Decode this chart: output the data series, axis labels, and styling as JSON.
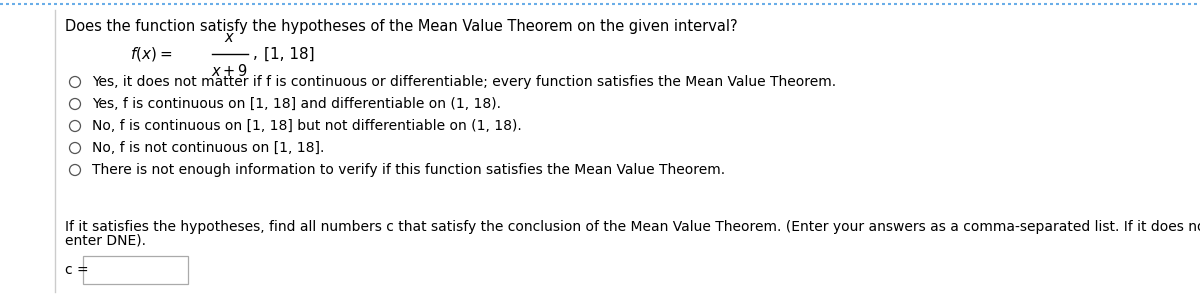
{
  "title": "Does the function satisfy the hypotheses of the Mean Value Theorem on the given interval?",
  "numerator": "x",
  "denominator": "x + 9",
  "interval": "[1, 18]",
  "options": [
    "Yes, it does not matter if f is continuous or differentiable; every function satisfies the Mean Value Theorem.",
    "Yes, f is continuous on [1, 18] and differentiable on (1, 18).",
    "No, f is continuous on [1, 18] but not differentiable on (1, 18).",
    "No, f is not continuous on [1, 18].",
    "There is not enough information to verify if this function satisfies the Mean Value Theorem."
  ],
  "footer_line1": "If it satisfies the hypotheses, find all numbers c that satisfy the conclusion of the Mean Value Theorem. (Enter your answers as a comma-separated list. If it does not satisfy the hypotheses,",
  "footer_line2": "enter DNE).",
  "c_label": "c =",
  "background_color": "#ffffff",
  "text_color": "#000000",
  "top_border_color": "#6aaee8",
  "left_border_color": "#cccccc",
  "radio_color": "#555555",
  "box_color": "#aaaaaa",
  "title_fontsize": 10.5,
  "option_fontsize": 10.0,
  "footer_fontsize": 10.0,
  "func_fontsize": 11.0
}
